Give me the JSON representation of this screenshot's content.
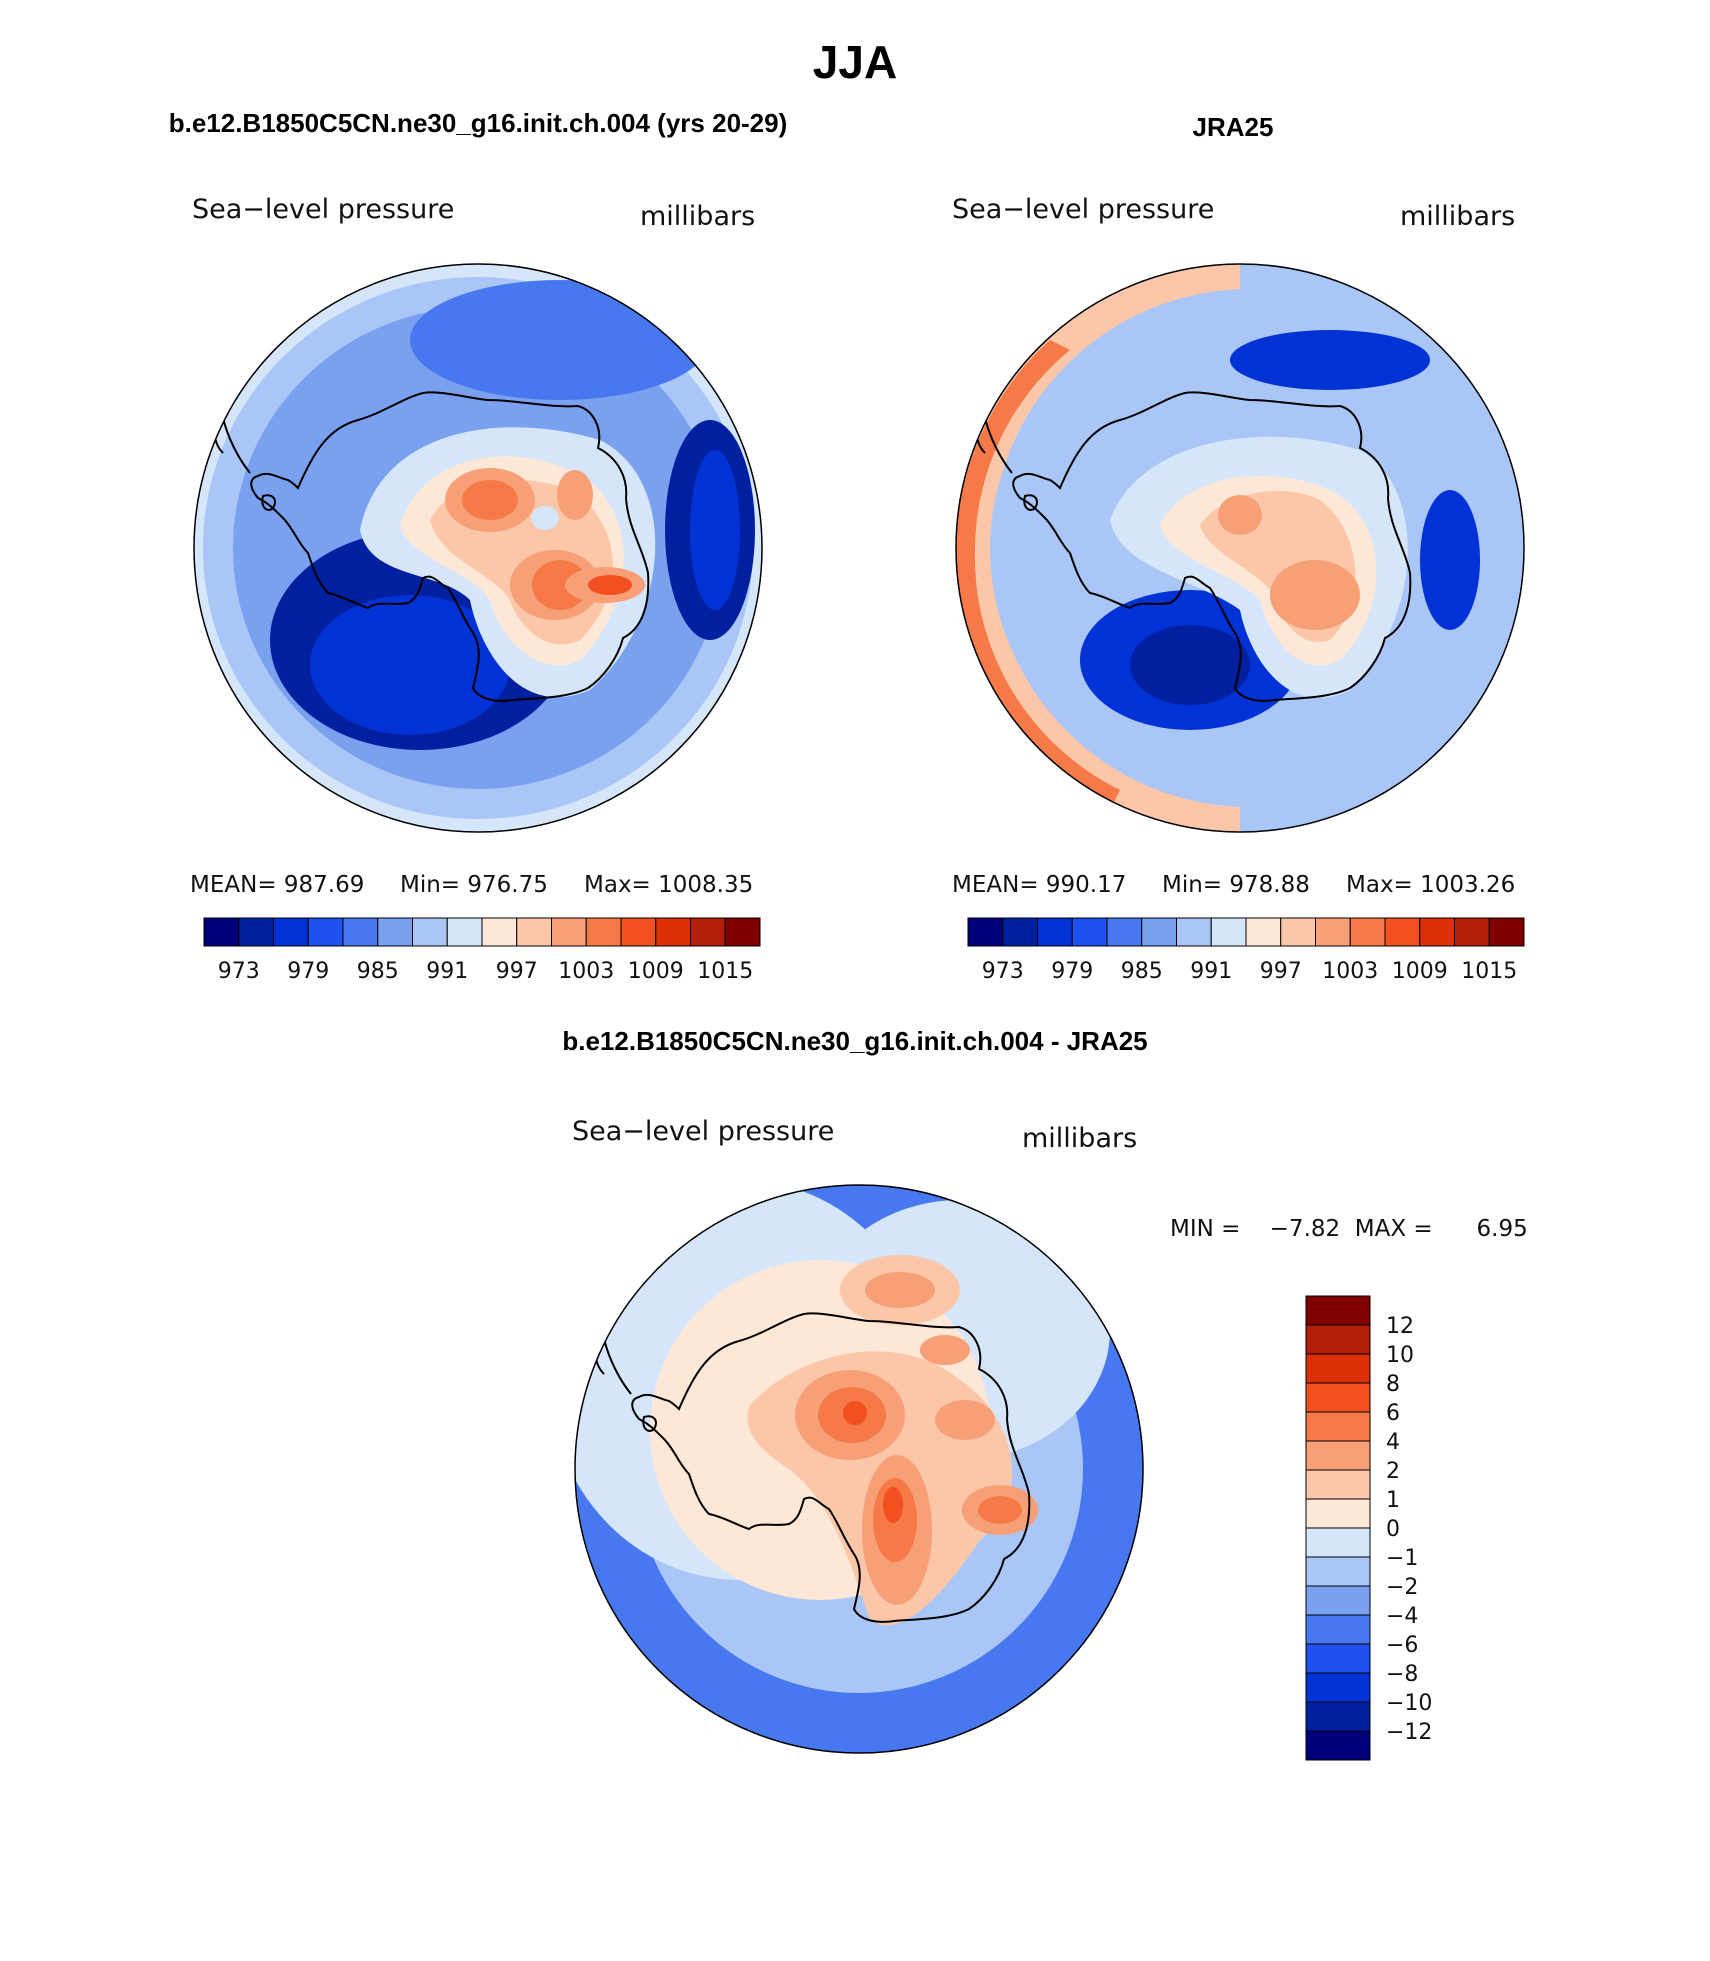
{
  "figure_title": "JJA",
  "panel_titles": {
    "left": "b.e12.B1850C5CN.ne30_g16.init.ch.004 (yrs 20-29)",
    "right": "JRA25",
    "bottom": "b.e12.B1850C5CN.ne30_g16.init.ch.004 - JRA25"
  },
  "colors": {
    "abs_scale": [
      "#00007a",
      "#0020a0",
      "#0032d6",
      "#1f50f0",
      "#4878f0",
      "#7aa0f0",
      "#a9c6f7",
      "#d5e6fb",
      "#fde7d6",
      "#fbc7a8",
      "#f7a078",
      "#f57a48",
      "#f25020",
      "#dc3008",
      "#b41e08",
      "#800000"
    ],
    "diff_scale": [
      "#00007a",
      "#0020a0",
      "#0032d6",
      "#1f50f0",
      "#4878f0",
      "#7aa0f0",
      "#a9c6f7",
      "#d5e6fb",
      "#fde7d6",
      "#fbc7a8",
      "#f7a078",
      "#f57a48",
      "#f25020",
      "#dc3008",
      "#b41e08",
      "#800000"
    ],
    "continent_outline": "#000000"
  },
  "chart_data": [
    {
      "type": "heatmap",
      "panel": "left",
      "title": "b.e12.B1850C5CN.ne30_g16.init.ch.004 (yrs 20-29)",
      "variable": "Sea−level pressure",
      "units": "millibars",
      "projection": "south polar stereographic",
      "stats": {
        "MEAN": 987.69,
        "Min": 976.75,
        "Max": 1008.35
      },
      "stats_text": {
        "mean": "MEAN=  987.69",
        "min": "Min=  976.75",
        "max": "Max=  1008.35"
      },
      "colorbar_labels": [
        "973",
        "979",
        "985",
        "991",
        "997",
        "1003",
        "1009",
        "1015"
      ],
      "colorbar_levels": [
        973,
        976,
        979,
        982,
        985,
        988,
        991,
        994,
        997,
        1000,
        1003,
        1006,
        1009,
        1012,
        1015
      ],
      "field_background_level": 985,
      "features": [
        {
          "region": "outer ring north",
          "level": 994
        },
        {
          "region": "Weddell low",
          "level": 979
        },
        {
          "region": "Ross low",
          "level": 982
        },
        {
          "region": "East Antarctic plateau high",
          "level": 1006
        },
        {
          "region": "West Antarctic high",
          "level": 1003
        }
      ]
    },
    {
      "type": "heatmap",
      "panel": "right",
      "title": "JRA25",
      "variable": "Sea−level pressure",
      "units": "millibars",
      "projection": "south polar stereographic",
      "stats": {
        "MEAN": 990.17,
        "Min": 978.88,
        "Max": 1003.26
      },
      "stats_text": {
        "mean": "MEAN=  990.17",
        "min": "Min=  978.88",
        "max": "Max=  1003.26"
      },
      "colorbar_labels": [
        "973",
        "979",
        "985",
        "991",
        "997",
        "1003",
        "1009",
        "1015"
      ],
      "colorbar_levels": [
        973,
        976,
        979,
        982,
        985,
        988,
        991,
        994,
        997,
        1000,
        1003,
        1006,
        1009,
        1012,
        1015
      ],
      "field_background_level": 988,
      "features": [
        {
          "region": "outer ring west",
          "level": 1003
        },
        {
          "region": "Weddell low",
          "level": 982
        },
        {
          "region": "Ross low",
          "level": 982
        },
        {
          "region": "East Antarctic plateau high",
          "level": 1000
        }
      ]
    },
    {
      "type": "heatmap",
      "panel": "bottom",
      "title": "b.e12.B1850C5CN.ne30_g16.init.ch.004 - JRA25",
      "variable": "Sea−level pressure",
      "units": "millibars",
      "projection": "south polar stereographic",
      "stats": {
        "MIN": -7.82,
        "MAX": 6.95
      },
      "stats_text": "MIN =    −7.82  MAX =      6.95",
      "colorbar_labels": [
        "12",
        "10",
        "8",
        "6",
        "4",
        "2",
        "1",
        "0",
        "−1",
        "−2",
        "−4",
        "−6",
        "−8",
        "−10",
        "−12"
      ],
      "colorbar_levels": [
        -12,
        -10,
        -8,
        -6,
        -4,
        -2,
        -1,
        0,
        1,
        2,
        4,
        6,
        8,
        10,
        12
      ],
      "field_background_level": -4,
      "features": [
        {
          "region": "southern ocean ring",
          "level": -6
        },
        {
          "region": "East Antarctic plateau",
          "level": 4
        },
        {
          "region": "Ross sector",
          "level": 6
        }
      ]
    }
  ]
}
